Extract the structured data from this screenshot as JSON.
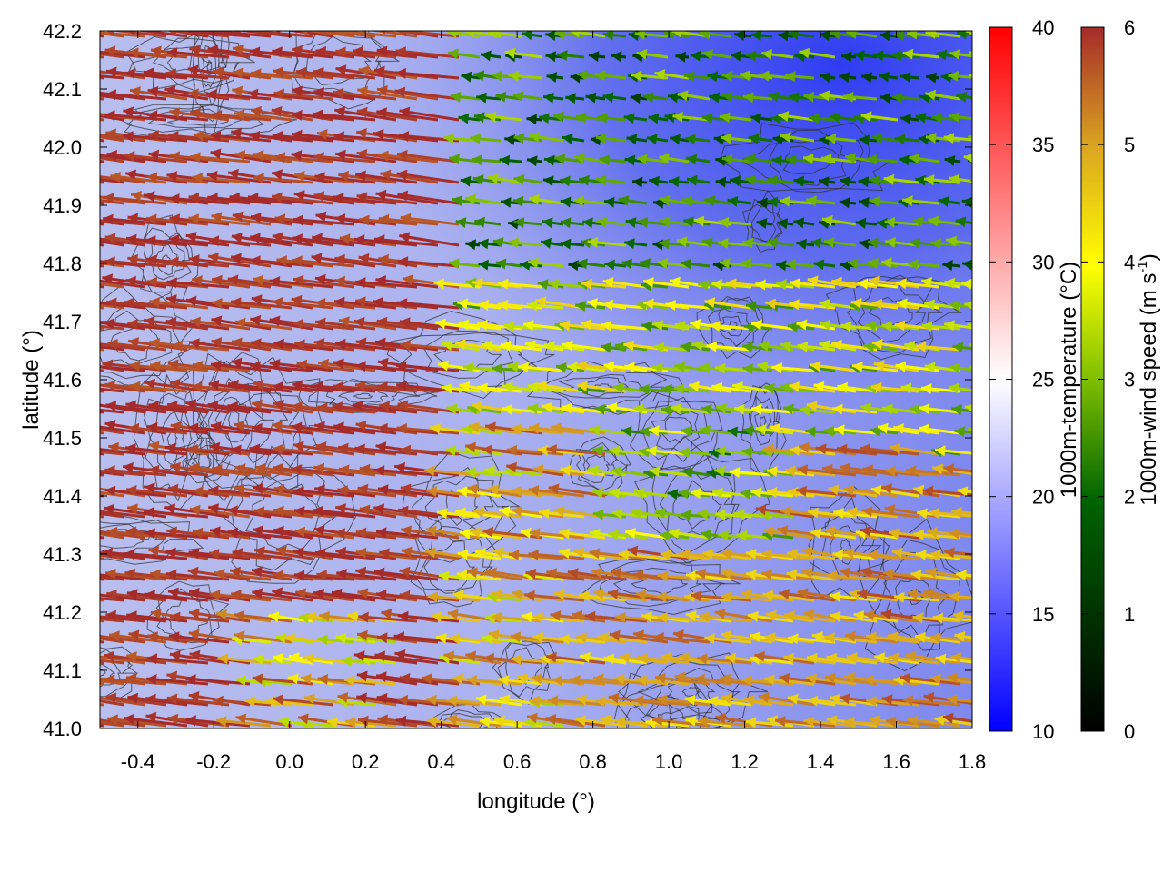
{
  "chart_data": {
    "type": "heatmap",
    "overlay": [
      "vector-field",
      "contour"
    ],
    "xlabel": "longitude (°)",
    "ylabel": "latitude (°)",
    "xlim": [
      -0.5,
      1.8
    ],
    "ylim": [
      41.0,
      42.2
    ],
    "xticks": [
      "-0.4",
      "-0.2",
      "0.0",
      "0.2",
      "0.4",
      "0.6",
      "0.8",
      "1.0",
      "1.2",
      "1.4",
      "1.6",
      "1.8"
    ],
    "yticks": [
      "41.0",
      "41.1",
      "41.2",
      "41.3",
      "41.4",
      "41.5",
      "41.6",
      "41.7",
      "41.8",
      "41.9",
      "42.0",
      "42.1",
      "42.2"
    ],
    "temperature_colorbar": {
      "label": "1000m-temperature (°C)",
      "range": [
        10,
        40
      ],
      "ticks": [
        "10",
        "15",
        "20",
        "25",
        "30",
        "35",
        "40"
      ],
      "colors": [
        "#0000ff",
        "#ffffff",
        "#ff0000"
      ]
    },
    "wind_colorbar": {
      "label": "1000m-wind speed (m s",
      "label_sup": "-1",
      "label_end": ")",
      "range": [
        0,
        6
      ],
      "ticks": [
        "0",
        "1",
        "2",
        "3",
        "4",
        "5",
        "6"
      ],
      "colors": [
        "#000000",
        "#006400",
        "#7fbf00",
        "#ffff00",
        "#daa520",
        "#a52a2a"
      ]
    },
    "temperature_field_estimate": [
      {
        "region": "west",
        "lon": [
          -0.5,
          0.5
        ],
        "temp_c": 21
      },
      {
        "region": "center",
        "lon": [
          0.5,
          1.2
        ],
        "temp_c": 19
      },
      {
        "region": "northeast",
        "lon": [
          1.2,
          1.8
        ],
        "temp_c": 15
      }
    ],
    "wind_field_estimate": {
      "direction": "westward",
      "speed_west_m_s": 6,
      "speed_northeast_m_s": 2
    }
  }
}
